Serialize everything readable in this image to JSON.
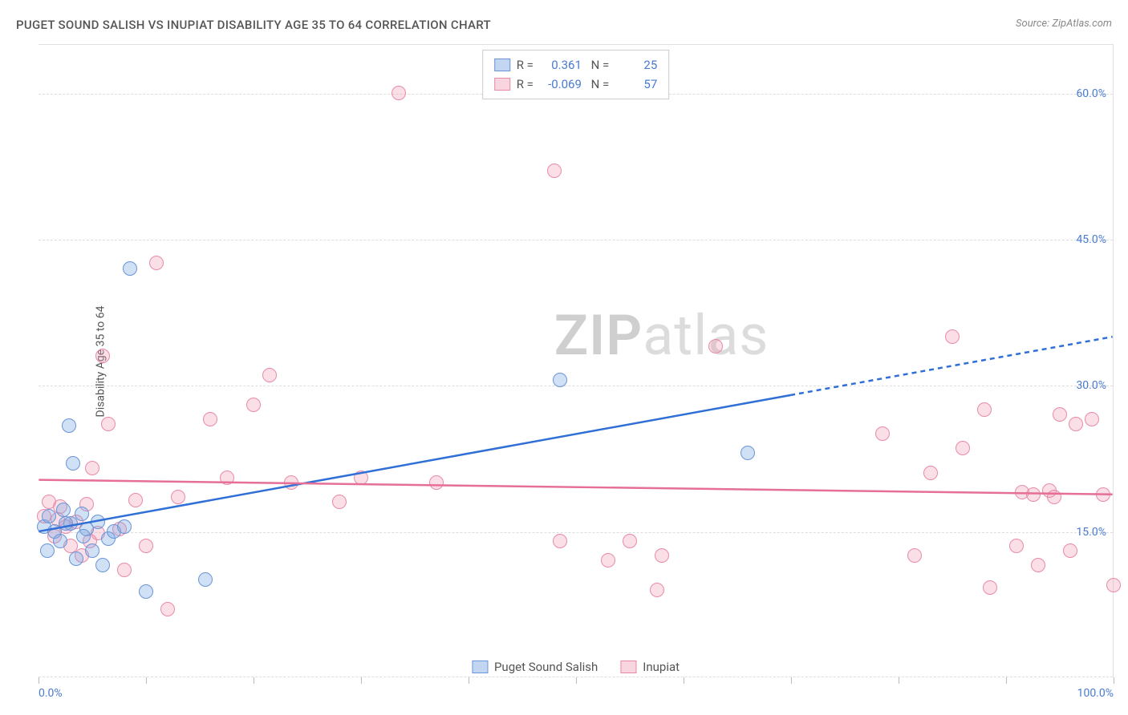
{
  "title": "PUGET SOUND SALISH VS INUPIAT DISABILITY AGE 35 TO 64 CORRELATION CHART",
  "source": "Source: ZipAtlas.com",
  "ylabel": "Disability Age 35 to 64",
  "watermark_a": "ZIP",
  "watermark_b": "atlas",
  "chart": {
    "type": "scatter",
    "xlim": [
      0,
      100
    ],
    "ylim": [
      0,
      65
    ],
    "xticks": [
      0,
      10,
      20,
      30,
      40,
      50,
      60,
      70,
      80,
      90,
      100
    ],
    "xtick_labels": {
      "0": "0.0%",
      "100": "100.0%"
    },
    "yticks": [
      15,
      30,
      45,
      60
    ],
    "ytick_labels": {
      "15": "15.0%",
      "30": "30.0%",
      "45": "45.0%",
      "60": "60.0%"
    },
    "background_color": "#ffffff",
    "grid_color": "#dddddd",
    "series": [
      {
        "name": "Puget Sound Salish",
        "key": "blue",
        "color_fill": "rgba(120,165,225,0.35)",
        "color_border": "#6a95d8",
        "R": "0.361",
        "N": "25",
        "trend": {
          "x1": 0,
          "y1": 15.0,
          "x2": 70,
          "y2": 29.0,
          "dash_to_x": 100,
          "dash_to_y": 35.0,
          "stroke": "#2f6fd6",
          "width": 2.5
        },
        "points": [
          [
            0.5,
            15.5
          ],
          [
            1.0,
            16.5
          ],
          [
            1.5,
            15.0
          ],
          [
            2.0,
            14.0
          ],
          [
            2.3,
            17.2
          ],
          [
            3.0,
            15.8
          ],
          [
            3.5,
            12.2
          ],
          [
            4.0,
            16.8
          ],
          [
            4.5,
            15.2
          ],
          [
            5.0,
            13.0
          ],
          [
            5.5,
            16.0
          ],
          [
            6.0,
            11.5
          ],
          [
            6.5,
            14.2
          ],
          [
            7.0,
            15.0
          ],
          [
            8.0,
            15.5
          ],
          [
            8.5,
            42.0
          ],
          [
            2.8,
            25.8
          ],
          [
            3.2,
            22.0
          ],
          [
            10.0,
            8.8
          ],
          [
            15.5,
            10.0
          ],
          [
            48.5,
            30.5
          ],
          [
            4.2,
            14.5
          ],
          [
            66.0,
            23.0
          ],
          [
            0.8,
            13.0
          ],
          [
            2.5,
            15.8
          ]
        ]
      },
      {
        "name": "Inupiat",
        "key": "pink",
        "color_fill": "rgba(240,150,175,0.30)",
        "color_border": "#e88aa8",
        "R": "-0.069",
        "N": "57",
        "trend": {
          "x1": 0,
          "y1": 20.3,
          "x2": 100,
          "y2": 18.8,
          "stroke": "#e56f96",
          "width": 2.5
        },
        "points": [
          [
            0.5,
            16.5
          ],
          [
            1.0,
            18.0
          ],
          [
            1.5,
            14.5
          ],
          [
            2.0,
            17.5
          ],
          [
            2.5,
            15.5
          ],
          [
            3.0,
            13.5
          ],
          [
            3.5,
            16.0
          ],
          [
            4.0,
            12.5
          ],
          [
            4.5,
            17.8
          ],
          [
            5.0,
            21.5
          ],
          [
            5.5,
            14.8
          ],
          [
            6.0,
            33.0
          ],
          [
            6.5,
            26.0
          ],
          [
            7.5,
            15.2
          ],
          [
            8.0,
            11.0
          ],
          [
            9.0,
            18.2
          ],
          [
            10.0,
            13.5
          ],
          [
            11.0,
            42.5
          ],
          [
            12.0,
            7.0
          ],
          [
            13.0,
            18.5
          ],
          [
            16.0,
            26.5
          ],
          [
            17.5,
            20.5
          ],
          [
            20.0,
            28.0
          ],
          [
            21.5,
            31.0
          ],
          [
            23.5,
            20.0
          ],
          [
            28.0,
            18.0
          ],
          [
            30.0,
            20.5
          ],
          [
            33.5,
            60.0
          ],
          [
            37.0,
            20.0
          ],
          [
            48.0,
            52.0
          ],
          [
            48.5,
            14.0
          ],
          [
            53.0,
            12.0
          ],
          [
            55.0,
            14.0
          ],
          [
            57.5,
            9.0
          ],
          [
            58.0,
            12.5
          ],
          [
            63.0,
            34.0
          ],
          [
            78.5,
            25.0
          ],
          [
            81.5,
            12.5
          ],
          [
            83.0,
            21.0
          ],
          [
            85.0,
            35.0
          ],
          [
            86.0,
            23.5
          ],
          [
            88.0,
            27.5
          ],
          [
            88.5,
            9.2
          ],
          [
            91.0,
            13.5
          ],
          [
            91.5,
            19.0
          ],
          [
            92.5,
            18.8
          ],
          [
            93.0,
            11.5
          ],
          [
            94.0,
            19.2
          ],
          [
            95.0,
            27.0
          ],
          [
            96.0,
            13.0
          ],
          [
            96.5,
            26.0
          ],
          [
            98.0,
            26.5
          ],
          [
            99.0,
            18.8
          ],
          [
            100.0,
            9.5
          ],
          [
            94.5,
            18.5
          ],
          [
            4.8,
            14.0
          ],
          [
            1.8,
            16.2
          ]
        ]
      }
    ]
  },
  "legend_bottom": [
    {
      "key": "blue",
      "label": "Puget Sound Salish"
    },
    {
      "key": "pink",
      "label": "Inupiat"
    }
  ]
}
